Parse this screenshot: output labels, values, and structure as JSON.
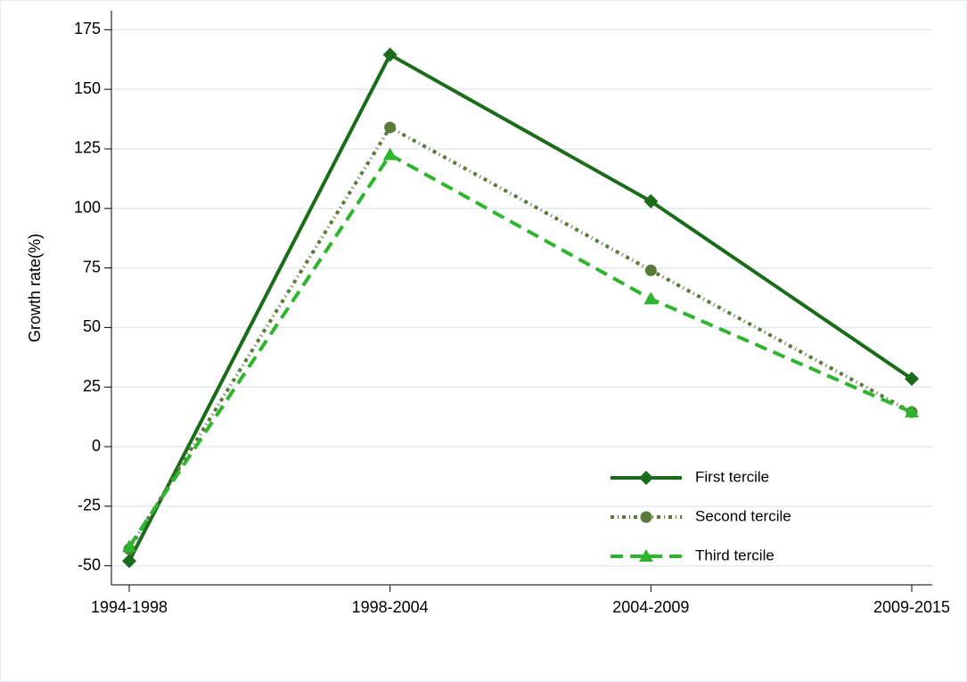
{
  "chart_data": {
    "type": "line",
    "y_label": "Growth rate(%)",
    "categories": [
      "1994-1998",
      "1998-2004",
      "2004-2009",
      "2009-2015"
    ],
    "series": [
      {
        "name": "First tercile",
        "color": "#1a6b1a",
        "marker": "diamond",
        "dash": "solid",
        "values": [
          -48,
          164.5,
          103,
          28.5
        ]
      },
      {
        "name": "Second tercile",
        "color": "#5a7a3a",
        "marker": "circle",
        "dash": "dashdot",
        "values": [
          -43,
          134,
          74,
          14.5
        ]
      },
      {
        "name": "Third tercile",
        "color": "#2db52d",
        "marker": "triangle",
        "dash": "dash",
        "values": [
          -42,
          122.5,
          62,
          14.5
        ]
      }
    ],
    "ylim": [
      -58,
      183
    ],
    "yticks": [
      -50,
      -25,
      0,
      25,
      50,
      75,
      100,
      125,
      150,
      175
    ],
    "grid": true,
    "legend": "lower right"
  }
}
